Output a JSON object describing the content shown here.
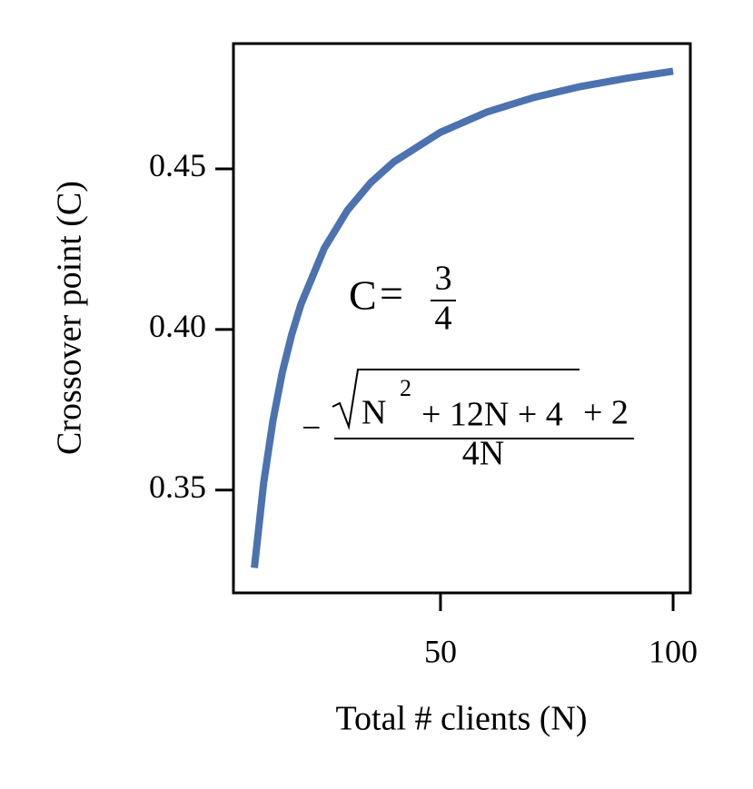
{
  "chart_data": {
    "type": "line",
    "x_label": "Total # clients (N)",
    "y_label": "Crossover point (C)",
    "x": [
      10,
      12,
      14,
      16,
      18,
      20,
      25,
      30,
      35,
      40,
      50,
      60,
      70,
      80,
      90,
      100
    ],
    "series": [
      {
        "color": "#4c72b0",
        "values": [
          0.3258,
          0.3523,
          0.3717,
          0.3866,
          0.3983,
          0.4078,
          0.4252,
          0.4371,
          0.4457,
          0.4522,
          0.4614,
          0.4677,
          0.4722,
          0.4756,
          0.4782,
          0.4804
        ]
      }
    ],
    "xlim": [
      5.5,
      103.7
    ],
    "ylim": [
      0.318,
      0.489
    ],
    "xticks": [
      50,
      100
    ],
    "yticks": [
      0.35,
      {
        "value": 0.4,
        "label": "0.40"
      },
      0.45
    ],
    "annotation": {
      "lhs": "C",
      "equals": "=",
      "numerator": "3",
      "denominator": "4",
      "minus": "−",
      "radicand": "N",
      "exponent": "2",
      "rest": "+ 12N + 4",
      "plus_two": "+ 2",
      "divisor": "4N"
    }
  }
}
